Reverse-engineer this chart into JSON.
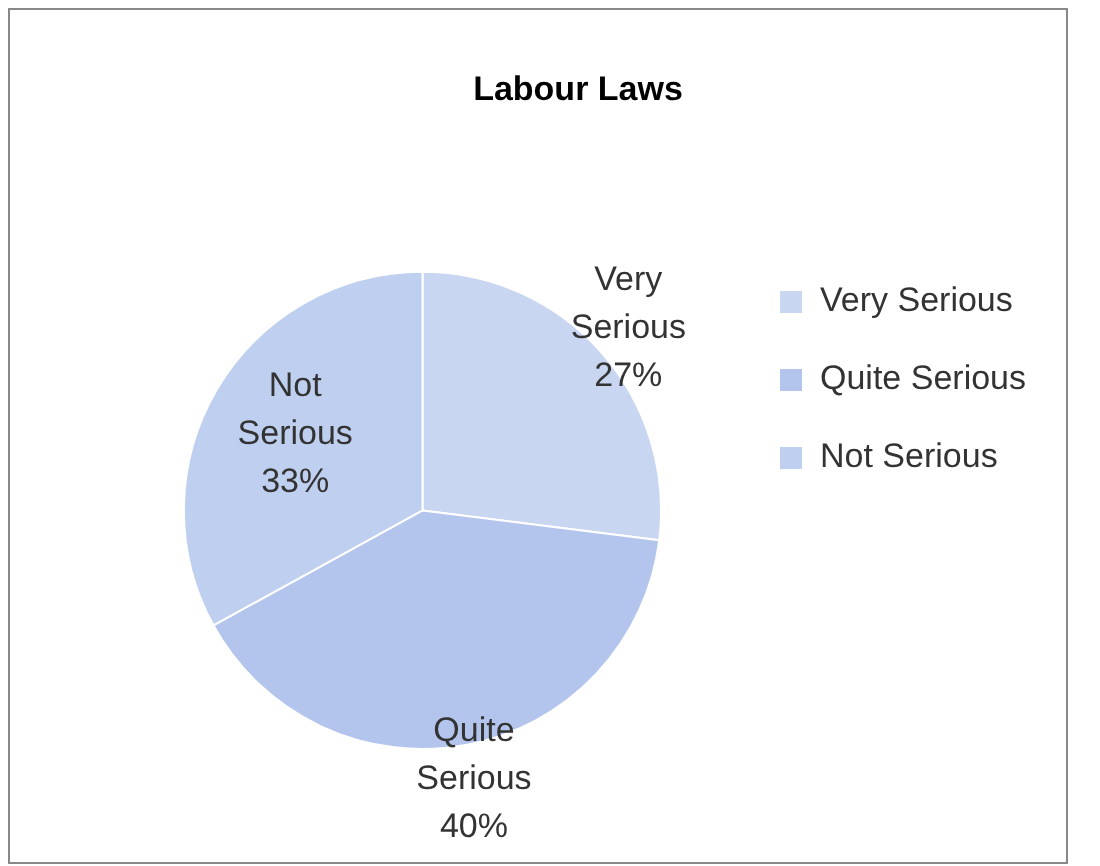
{
  "chart_data": {
    "type": "pie",
    "title": "Labour Laws",
    "categories": [
      "Very Serious",
      "Quite Serious",
      "Not Serious"
    ],
    "values": [
      27,
      40,
      33
    ],
    "value_labels": [
      "27%",
      "40%",
      "33%"
    ],
    "colors": [
      "#c9d6f2",
      "#b3c5ec",
      "#bfcfef"
    ],
    "legend": "right"
  }
}
